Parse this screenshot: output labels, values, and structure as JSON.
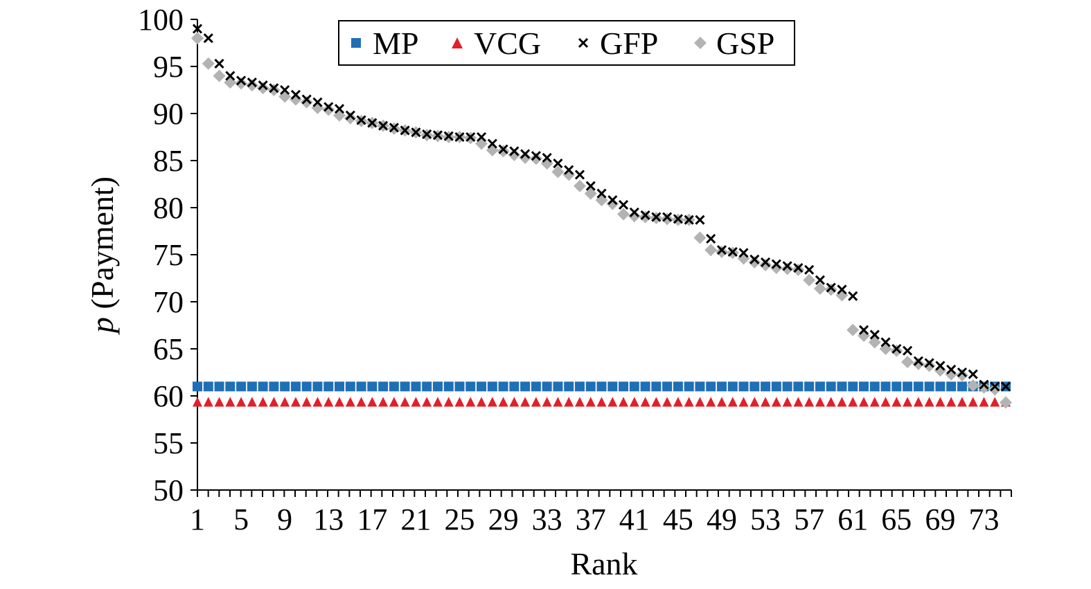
{
  "chart_data": {
    "type": "scatter",
    "title": "",
    "xlabel": "Rank",
    "ylabel_italic": "p",
    "ylabel_rest": " (Payment)",
    "ylim": [
      50,
      100
    ],
    "yticks": [
      50,
      55,
      60,
      65,
      70,
      75,
      80,
      85,
      90,
      95,
      100
    ],
    "xlim": [
      1,
      75
    ],
    "xticks": [
      1,
      5,
      9,
      13,
      17,
      21,
      25,
      29,
      33,
      37,
      41,
      45,
      49,
      53,
      57,
      61,
      65,
      69,
      73
    ],
    "grid": false,
    "legend_position": "top-center",
    "series": [
      {
        "name": "MP",
        "marker": "square",
        "color": "#1f6fb5",
        "constant": 61.0,
        "count": 75
      },
      {
        "name": "VCG",
        "marker": "triangle",
        "color": "#e0202a",
        "constant": 59.3,
        "count": 75
      },
      {
        "name": "GFP",
        "marker": "x",
        "color": "#000000",
        "values": [
          99.0,
          98.0,
          95.3,
          94.0,
          93.5,
          93.3,
          93.0,
          92.7,
          92.5,
          92.0,
          91.5,
          91.2,
          90.7,
          90.5,
          89.8,
          89.3,
          89.0,
          88.7,
          88.5,
          88.2,
          88.0,
          87.8,
          87.7,
          87.6,
          87.5,
          87.5,
          87.5,
          86.8,
          86.2,
          86.0,
          85.7,
          85.5,
          85.3,
          84.7,
          84.0,
          83.5,
          82.3,
          81.5,
          80.8,
          80.3,
          79.5,
          79.2,
          79.0,
          79.0,
          78.8,
          78.7,
          78.7,
          76.7,
          75.5,
          75.3,
          75.2,
          74.5,
          74.2,
          74.0,
          73.8,
          73.6,
          73.4,
          72.3,
          71.5,
          71.3,
          70.6,
          67.0,
          66.5,
          65.7,
          65.0,
          64.8,
          63.7,
          63.5,
          63.2,
          62.8,
          62.5,
          62.3,
          61.2,
          61.0,
          61.0
        ]
      },
      {
        "name": "GSP",
        "marker": "diamond",
        "color": "#b3b3b3",
        "values": [
          98.0,
          95.3,
          94.0,
          93.3,
          93.2,
          93.0,
          92.7,
          92.5,
          91.8,
          91.5,
          91.2,
          90.6,
          90.4,
          89.8,
          89.5,
          89.2,
          89.0,
          88.7,
          88.4,
          88.2,
          88.0,
          87.7,
          87.6,
          87.5,
          87.5,
          87.4,
          86.8,
          86.1,
          86.0,
          85.6,
          85.3,
          85.2,
          84.7,
          83.8,
          83.5,
          82.3,
          81.5,
          80.8,
          80.4,
          79.3,
          79.1,
          79.0,
          78.9,
          78.8,
          78.7,
          78.7,
          76.8,
          75.5,
          75.3,
          75.2,
          74.6,
          74.2,
          73.9,
          73.6,
          73.5,
          73.4,
          72.3,
          71.4,
          71.3,
          70.7,
          67.0,
          66.4,
          65.7,
          65.0,
          64.8,
          63.6,
          63.4,
          63.2,
          62.7,
          62.3,
          62.2,
          61.1,
          60.9,
          60.7,
          59.3
        ]
      }
    ]
  }
}
